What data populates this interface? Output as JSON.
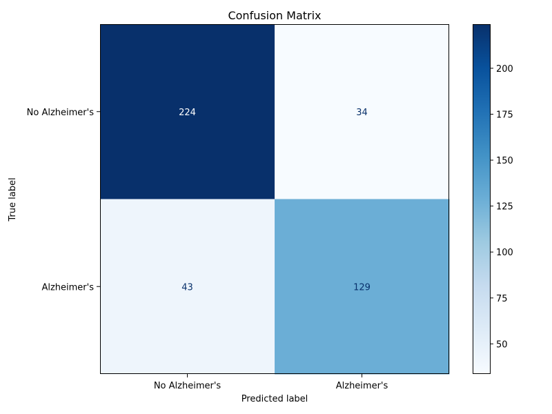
{
  "chart_data": {
    "type": "heatmap",
    "title": "Confusion Matrix",
    "xlabel": "Predicted label",
    "ylabel": "True label",
    "x_categories": [
      "No Alzheimer's",
      "Alzheimer's"
    ],
    "y_categories": [
      "No Alzheimer's",
      "Alzheimer's"
    ],
    "matrix": [
      [
        224,
        34
      ],
      [
        43,
        129
      ]
    ],
    "colormap": "Blues",
    "colorbar": {
      "min": 34,
      "max": 224,
      "ticks": [
        50,
        75,
        100,
        125,
        150,
        175,
        200
      ]
    },
    "grid": false
  }
}
